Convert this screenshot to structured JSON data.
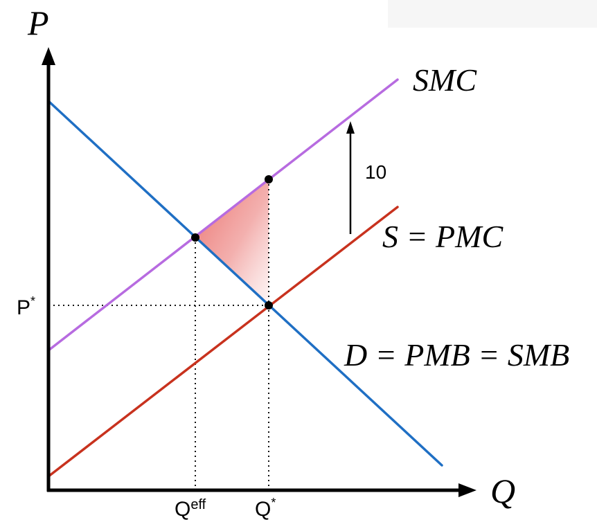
{
  "diagram": {
    "axes": {
      "y_label": "P",
      "x_label": "Q"
    },
    "curves": {
      "smc": {
        "label": "SMC",
        "color": "#b76be0"
      },
      "supply": {
        "label": "S = PMC",
        "color": "#c8321e"
      },
      "demand": {
        "label": "D = PMB = SMB",
        "color": "#1f6fc4"
      }
    },
    "shift_annotation": "10",
    "ticks": {
      "p_star": {
        "base": "P",
        "sup": "*"
      },
      "q_eff": {
        "base": "Q",
        "sup": "eff"
      },
      "q_star": {
        "base": "Q",
        "sup": "*"
      }
    },
    "deadweight_loss_color": "#ee7b74"
  }
}
